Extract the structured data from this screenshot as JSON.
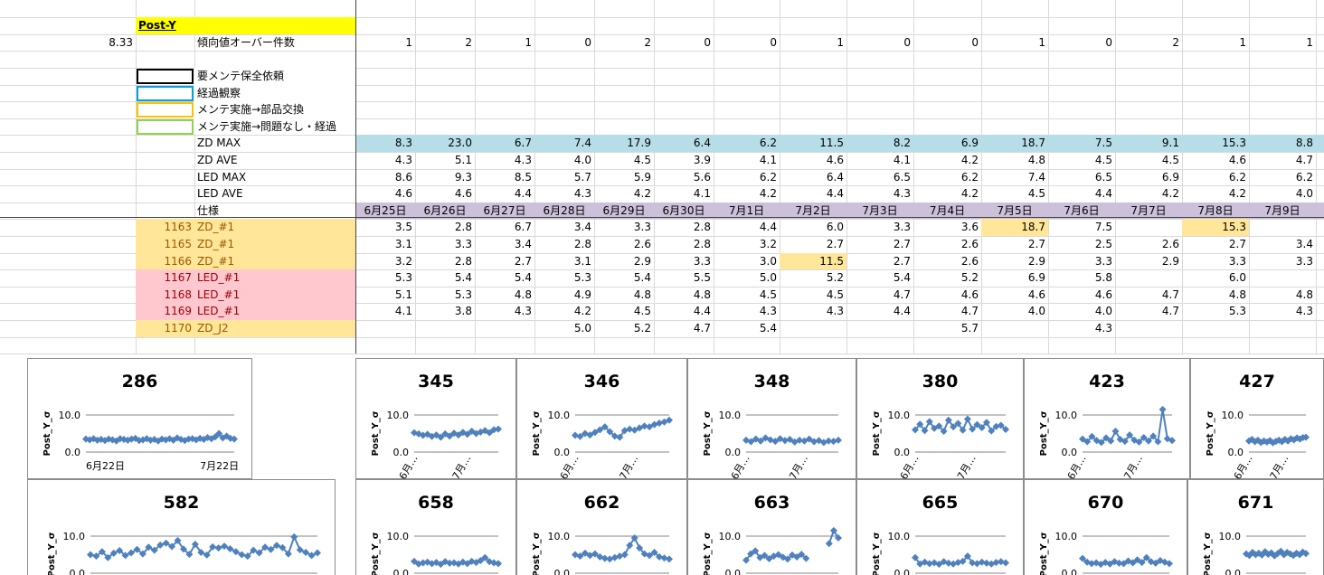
{
  "sheet": {
    "header_label": "Post-Y",
    "threshold": 8.33,
    "over_label": "傾向値オーバー件数",
    "over_counts": [
      1,
      2,
      1,
      0,
      2,
      0,
      0,
      1,
      0,
      0,
      1,
      0,
      2,
      1,
      1
    ],
    "legend": [
      {
        "label": "要メンテ保全依頼",
        "color": "#000000"
      },
      {
        "label": "経過観察",
        "color": "#00a0e0"
      },
      {
        "label": "メンテ実施→部品交換",
        "color": "#ffc000"
      },
      {
        "label": "メンテ実施→問題なし・経過",
        "color": "#92d050"
      }
    ],
    "summary_rows": [
      {
        "label": "ZD MAX",
        "fill": "#b7dee8",
        "values": [
          "8.3",
          "23.0",
          "6.7",
          "7.4",
          "17.9",
          "6.4",
          "6.2",
          "11.5",
          "8.2",
          "6.9",
          "18.7",
          "7.5",
          "9.1",
          "15.3",
          "8.8"
        ]
      },
      {
        "label": "ZD AVE",
        "values": [
          "4.3",
          "5.1",
          "4.3",
          "4.0",
          "4.5",
          "3.9",
          "4.1",
          "4.6",
          "4.1",
          "4.2",
          "4.8",
          "4.5",
          "4.5",
          "4.6",
          "4.7"
        ]
      },
      {
        "label": "LED MAX",
        "values": [
          "8.6",
          "9.3",
          "8.5",
          "5.7",
          "5.9",
          "5.6",
          "6.2",
          "6.4",
          "6.5",
          "6.2",
          "7.4",
          "6.5",
          "6.9",
          "6.2",
          "6.2"
        ]
      },
      {
        "label": "LED AVE",
        "values": [
          "4.6",
          "4.6",
          "4.4",
          "4.3",
          "4.2",
          "4.1",
          "4.2",
          "4.4",
          "4.3",
          "4.2",
          "4.5",
          "4.4",
          "4.2",
          "4.2",
          "4.0"
        ]
      }
    ],
    "spec_label": "仕様",
    "spec_fill": "#ccc0da",
    "dates": [
      "6月25日",
      "6月26日",
      "6月27日",
      "6月28日",
      "6月29日",
      "6月30日",
      "7月1日",
      "7月2日",
      "7月3日",
      "7月4日",
      "7月5日",
      "7月6日",
      "7月7日",
      "7月8日",
      "7月9日"
    ],
    "highlight_fill": "#ffe699",
    "rows": [
      {
        "id": "1163",
        "type": "ZD_#1",
        "fill": "#ffe699",
        "text_color": "#9c5700",
        "highlight": [
          10,
          13
        ],
        "values": [
          "3.5",
          "2.8",
          "6.7",
          "3.4",
          "3.3",
          "2.8",
          "4.4",
          "6.0",
          "3.3",
          "3.6",
          "18.7",
          "7.5",
          null,
          "15.3",
          null
        ]
      },
      {
        "id": "1165",
        "type": "ZD_#1",
        "fill": "#ffe699",
        "text_color": "#9c5700",
        "highlight": [],
        "values": [
          "3.1",
          "3.3",
          "3.4",
          "2.8",
          "2.6",
          "2.8",
          "3.2",
          "2.7",
          "2.7",
          "2.6",
          "2.7",
          "2.5",
          "2.6",
          "2.7",
          "3.4"
        ]
      },
      {
        "id": "1166",
        "type": "ZD_#1",
        "fill": "#ffe699",
        "text_color": "#9c5700",
        "highlight": [
          7
        ],
        "values": [
          "3.2",
          "2.8",
          "2.7",
          "3.1",
          "2.9",
          "3.3",
          "3.0",
          "11.5",
          "2.7",
          "2.6",
          "2.9",
          "3.3",
          "2.9",
          "3.3",
          "3.3"
        ]
      },
      {
        "id": "1167",
        "type": "LED_#1",
        "fill": "#ffc7ce",
        "text_color": "#9c0006",
        "highlight": [],
        "values": [
          "5.3",
          "5.4",
          "5.4",
          "5.3",
          "5.4",
          "5.5",
          "5.0",
          "5.2",
          "5.4",
          "5.2",
          "6.9",
          "5.8",
          null,
          "6.0",
          null
        ]
      },
      {
        "id": "1168",
        "type": "LED_#1",
        "fill": "#ffc7ce",
        "text_color": "#9c0006",
        "highlight": [],
        "values": [
          "5.1",
          "5.3",
          "4.8",
          "4.9",
          "4.8",
          "4.8",
          "4.5",
          "4.5",
          "4.7",
          "4.6",
          "4.6",
          "4.6",
          "4.7",
          "4.8",
          "4.8"
        ]
      },
      {
        "id": "1169",
        "type": "LED_#1",
        "fill": "#ffc7ce",
        "text_color": "#9c0006",
        "highlight": [],
        "values": [
          "4.1",
          "3.8",
          "4.3",
          "4.2",
          "4.5",
          "4.4",
          "4.3",
          "4.3",
          "4.4",
          "4.7",
          "4.0",
          "4.0",
          "4.7",
          "5.3",
          "4.3"
        ]
      },
      {
        "id": "1170",
        "type": "ZD_J2",
        "fill": "#ffe699",
        "text_color": "#9c5700",
        "highlight": [],
        "values": [
          null,
          null,
          null,
          "5.0",
          "5.2",
          "4.7",
          "5.4",
          null,
          null,
          "5.7",
          null,
          "4.3",
          null,
          null,
          null
        ]
      }
    ]
  },
  "chart_data": [
    {
      "type": "line",
      "title": "286",
      "ylabel": "Post_Y_σ",
      "color": "#4f81bd",
      "ylim": [
        0,
        12
      ],
      "yticks": [
        {
          "value": 0,
          "label": "0.0"
        },
        {
          "value": 10,
          "label": "10.0"
        }
      ],
      "xlim": [
        0,
        39
      ],
      "xticks": [
        {
          "value": 0,
          "label": "6月22日"
        },
        {
          "value": 30,
          "label": "7月22日"
        }
      ],
      "values": [
        3.5,
        3.3,
        3.6,
        3.2,
        3.4,
        3.1,
        3.5,
        3.3,
        3.0,
        3.6,
        3.4,
        3.2,
        3.5,
        3.7,
        3.1,
        3.3,
        3.6,
        3.2,
        3.4,
        3.0,
        3.5,
        3.3,
        3.6,
        3.2,
        3.8,
        3.4,
        3.1,
        3.5,
        3.6,
        3.3,
        3.7,
        3.4,
        3.9,
        3.6,
        4.1,
        5.0,
        3.8,
        4.3,
        3.7,
        3.5
      ]
    },
    {
      "type": "line",
      "title": "345",
      "ylabel": "Post_Y_σ",
      "color": "#4f81bd",
      "ylim": [
        0,
        12
      ],
      "yticks": [
        {
          "value": 0,
          "label": "0.0"
        },
        {
          "value": 10,
          "label": "10.0"
        }
      ],
      "xlim": [
        0,
        19
      ],
      "xticks": [
        {
          "value": 0,
          "label": "6月…"
        },
        {
          "value": 12,
          "label": "7月…"
        }
      ],
      "values": [
        5.2,
        4.9,
        4.5,
        4.8,
        4.2,
        4.6,
        4.0,
        4.9,
        4.3,
        5.1,
        4.6,
        5.3,
        4.8,
        5.6,
        5.0,
        5.4,
        5.8,
        5.2,
        6.0,
        6.2
      ]
    },
    {
      "type": "line",
      "title": "346",
      "ylabel": "Post_Y_σ",
      "color": "#4f81bd",
      "ylim": [
        0,
        12
      ],
      "yticks": [
        {
          "value": 0,
          "label": "0.0"
        },
        {
          "value": 10,
          "label": "10.0"
        }
      ],
      "xlim": [
        0,
        19
      ],
      "xticks": [
        {
          "value": 0,
          "label": "6月…"
        },
        {
          "value": 12,
          "label": "7月…"
        }
      ],
      "values": [
        4.5,
        4.2,
        5.0,
        4.6,
        5.3,
        6.0,
        6.8,
        5.5,
        4.3,
        4.0,
        5.8,
        6.2,
        5.9,
        6.5,
        7.0,
        6.8,
        7.4,
        7.8,
        8.1,
        8.6
      ]
    },
    {
      "type": "line",
      "title": "348",
      "ylabel": "Post_Y_σ",
      "color": "#4f81bd",
      "ylim": [
        0,
        12
      ],
      "yticks": [
        {
          "value": 0,
          "label": "0.0"
        },
        {
          "value": 10,
          "label": "10.0"
        }
      ],
      "xlim": [
        0,
        19
      ],
      "xticks": [
        {
          "value": 0,
          "label": "6月…"
        },
        {
          "value": 12,
          "label": "7月…"
        }
      ],
      "values": [
        3.2,
        2.8,
        3.5,
        3.0,
        3.8,
        3.3,
        2.9,
        3.6,
        3.1,
        3.4,
        2.7,
        3.2,
        3.0,
        3.5,
        2.8,
        3.1,
        2.6,
        3.0,
        2.9,
        3.2
      ]
    },
    {
      "type": "line",
      "title": "380",
      "ylabel": "Post_Y_σ",
      "color": "#4f81bd",
      "ylim": [
        0,
        12
      ],
      "yticks": [
        {
          "value": 0,
          "label": "0.0"
        },
        {
          "value": 10,
          "label": "10.0"
        }
      ],
      "xlim": [
        0,
        19
      ],
      "xticks": [
        {
          "value": 0,
          "label": "6月…"
        },
        {
          "value": 12,
          "label": "7月…"
        }
      ],
      "values": [
        6.0,
        7.5,
        5.8,
        8.2,
        6.4,
        7.0,
        5.6,
        8.6,
        6.8,
        7.7,
        5.9,
        8.9,
        6.2,
        7.4,
        6.6,
        8.0,
        5.7,
        6.9,
        7.2,
        6.1
      ]
    },
    {
      "type": "line",
      "title": "423",
      "ylabel": "Post_Y_σ",
      "color": "#4f81bd",
      "ylim": [
        0,
        12
      ],
      "yticks": [
        {
          "value": 0,
          "label": "0.0"
        },
        {
          "value": 10,
          "label": "10.0"
        }
      ],
      "xlim": [
        0,
        19
      ],
      "xticks": [
        {
          "value": 0,
          "label": "6月…"
        },
        {
          "value": 12,
          "label": "7月…"
        }
      ],
      "values": [
        3.5,
        2.8,
        4.2,
        3.1,
        2.6,
        3.8,
        3.0,
        5.6,
        3.4,
        2.9,
        4.6,
        3.2,
        2.7,
        3.9,
        3.0,
        4.3,
        2.8,
        11.5,
        3.6,
        3.1
      ]
    },
    {
      "type": "line",
      "title": "427",
      "ylabel": "Post_Y_σ",
      "color": "#4f81bd",
      "ylim": [
        0,
        12
      ],
      "yticks": [
        {
          "value": 0,
          "label": "0.0"
        },
        {
          "value": 10,
          "label": "10.0"
        }
      ],
      "xlim": [
        0,
        19
      ],
      "xticks": [
        {
          "value": 0,
          "label": "6月…"
        },
        {
          "value": 12,
          "label": "7月…"
        }
      ],
      "values": [
        3.0,
        3.4,
        2.8,
        3.2,
        2.6,
        3.0,
        2.7,
        3.1,
        2.5,
        2.9,
        3.2,
        2.8,
        3.4,
        3.0,
        3.6,
        3.3,
        3.8,
        3.5,
        3.9,
        4.0
      ]
    },
    {
      "type": "line",
      "title": "582",
      "ylabel": "Post_Y_σ",
      "color": "#4f81bd",
      "ylim": [
        0,
        12
      ],
      "yticks": [
        {
          "value": 0,
          "label": "0.0"
        },
        {
          "value": 10,
          "label": "10.0"
        }
      ],
      "xlim": [
        0,
        39
      ],
      "values": [
        5.0,
        4.6,
        5.8,
        4.2,
        5.4,
        6.1,
        4.8,
        5.5,
        6.4,
        5.2,
        7.0,
        6.2,
        7.6,
        8.1,
        7.2,
        8.8,
        6.5,
        5.1,
        7.8,
        5.6,
        4.9,
        7.1,
        6.8,
        7.3,
        6.6,
        5.8,
        5.0,
        4.6,
        6.2,
        5.5,
        7.0,
        6.4,
        7.5,
        6.9,
        5.2,
        9.8,
        6.3,
        5.6,
        4.8,
        5.5
      ]
    },
    {
      "type": "line",
      "title": "658",
      "ylabel": "Post_Y_σ",
      "color": "#4f81bd",
      "ylim": [
        0,
        12
      ],
      "yticks": [
        {
          "value": 0,
          "label": "0.0"
        },
        {
          "value": 10,
          "label": "10.0"
        }
      ],
      "xlim": [
        0,
        19
      ],
      "values": [
        3.2,
        2.5,
        2.8,
        3.0,
        2.6,
        2.9,
        2.4,
        3.1,
        2.7,
        2.8,
        2.5,
        3.0,
        2.6,
        3.2,
        2.9,
        3.4,
        4.2,
        3.1,
        2.8,
        2.6
      ]
    },
    {
      "type": "line",
      "title": "662",
      "ylabel": "Post_Y_σ",
      "color": "#4f81bd",
      "ylim": [
        0,
        12
      ],
      "yticks": [
        {
          "value": 0,
          "label": "0.0"
        },
        {
          "value": 10,
          "label": "10.0"
        }
      ],
      "xlim": [
        0,
        19
      ],
      "values": [
        5.0,
        4.6,
        5.4,
        4.8,
        5.2,
        4.4,
        4.0,
        3.8,
        4.2,
        4.6,
        5.0,
        7.5,
        9.5,
        6.8,
        5.2,
        4.8,
        5.6,
        4.4,
        4.1,
        3.8
      ]
    },
    {
      "type": "line",
      "title": "663",
      "ylabel": "Post_Y_σ",
      "color": "#4f81bd",
      "ylim": [
        0,
        12
      ],
      "yticks": [
        {
          "value": 0,
          "label": "0.0"
        },
        {
          "value": 10,
          "label": "10.0"
        }
      ],
      "xlim": [
        0,
        20
      ],
      "values": [
        3.5,
        5.2,
        6.0,
        4.2,
        4.8,
        3.9,
        4.6,
        5.0,
        4.3,
        3.8,
        4.9,
        4.4,
        5.1,
        4.0,
        null,
        null,
        null,
        null,
        8.0,
        11.5,
        9.5
      ]
    },
    {
      "type": "line",
      "title": "665",
      "ylabel": "Post_Y_σ",
      "color": "#4f81bd",
      "ylim": [
        0,
        12
      ],
      "yticks": [
        {
          "value": 0,
          "label": "0.0"
        },
        {
          "value": 10,
          "label": "10.0"
        }
      ],
      "xlim": [
        0,
        19
      ],
      "values": [
        4.2,
        2.5,
        3.0,
        2.6,
        2.8,
        2.4,
        3.1,
        2.7,
        2.5,
        2.9,
        3.2,
        4.6,
        2.8,
        2.6,
        3.0,
        2.7,
        2.5,
        2.9,
        3.1,
        2.8
      ]
    },
    {
      "type": "line",
      "title": "670",
      "ylabel": "Post_Y_σ",
      "color": "#4f81bd",
      "ylim": [
        0,
        12
      ],
      "yticks": [
        {
          "value": 0,
          "label": "0.0"
        },
        {
          "value": 10,
          "label": "10.0"
        }
      ],
      "xlim": [
        0,
        19
      ],
      "values": [
        4.0,
        3.0,
        2.6,
        2.8,
        2.4,
        2.9,
        2.5,
        3.1,
        2.7,
        2.6,
        3.3,
        2.8,
        3.6,
        2.9,
        4.2,
        3.1,
        2.7,
        3.4,
        3.0,
        2.6
      ]
    },
    {
      "type": "line",
      "title": "671",
      "ylabel": "Post_Y_σ",
      "color": "#4f81bd",
      "ylim": [
        0,
        12
      ],
      "yticks": [
        {
          "value": 0,
          "label": "0.0"
        },
        {
          "value": 10,
          "label": "10.0"
        }
      ],
      "xlim": [
        0,
        19
      ],
      "values": [
        5.2,
        4.8,
        5.6,
        5.0,
        5.4,
        4.9,
        5.8,
        5.1,
        5.5,
        4.7,
        5.3,
        5.9,
        5.0,
        5.6,
        5.2,
        4.8,
        5.4,
        5.0,
        5.7,
        5.3
      ]
    }
  ]
}
